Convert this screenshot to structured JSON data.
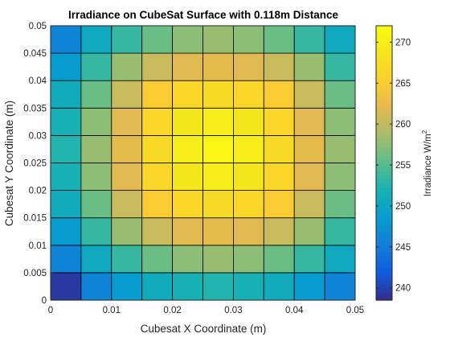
{
  "chart_data": {
    "type": "heatmap",
    "title": "Irradiance on CubeSat Surface with 0.118m Distance",
    "xlabel": "Cubesat X Coordinate (m)",
    "ylabel": "Cubesat Y Coordinate (m)",
    "colorbar_label": "Irradiance W/m",
    "colorbar_label_sup": "2",
    "colormap": "parula",
    "xlim": [
      0,
      0.05
    ],
    "ylim": [
      0,
      0.05
    ],
    "clim": [
      238.5,
      272.0
    ],
    "x_ticks": [
      "0",
      "0.01",
      "0.02",
      "0.03",
      "0.04",
      "0.05"
    ],
    "y_ticks": [
      "0",
      "0.005",
      "0.01",
      "0.015",
      "0.02",
      "0.025",
      "0.03",
      "0.035",
      "0.04",
      "0.045",
      "0.05"
    ],
    "colorbar_ticks": [
      "240",
      "245",
      "250",
      "255",
      "260",
      "265",
      "270"
    ],
    "x_edges": [
      0,
      0.005,
      0.01,
      0.015,
      0.02,
      0.025,
      0.03,
      0.035,
      0.04,
      0.045,
      0.05
    ],
    "y_edges": [
      0,
      0.005,
      0.01,
      0.015,
      0.02,
      0.025,
      0.03,
      0.035,
      0.04,
      0.045,
      0.05
    ],
    "grid": true,
    "values": [
      [
        239.5,
        246.0,
        248.5,
        251.0,
        252.0,
        252.5,
        252.0,
        251.0,
        248.5,
        246.0
      ],
      [
        246.0,
        250.5,
        253.5,
        256.0,
        257.5,
        258.0,
        257.5,
        256.0,
        253.5,
        250.5
      ],
      [
        248.5,
        253.5,
        258.0,
        260.5,
        262.0,
        262.5,
        262.0,
        260.5,
        258.0,
        253.5
      ],
      [
        251.0,
        256.0,
        260.5,
        265.0,
        266.5,
        267.0,
        266.5,
        265.0,
        260.5,
        256.0
      ],
      [
        252.0,
        257.5,
        262.0,
        266.5,
        269.0,
        270.0,
        269.0,
        266.5,
        262.0,
        257.5
      ],
      [
        252.5,
        258.0,
        262.5,
        267.0,
        270.0,
        271.0,
        270.0,
        267.0,
        262.5,
        258.0
      ],
      [
        252.0,
        257.5,
        262.0,
        266.5,
        269.0,
        270.0,
        269.0,
        266.5,
        262.0,
        257.5
      ],
      [
        251.0,
        256.0,
        260.5,
        265.0,
        266.5,
        267.0,
        266.5,
        265.0,
        260.5,
        256.0
      ],
      [
        248.5,
        253.5,
        258.0,
        260.5,
        262.0,
        262.5,
        262.0,
        260.5,
        258.0,
        253.5
      ],
      [
        246.0,
        250.5,
        253.5,
        256.0,
        257.5,
        258.0,
        257.5,
        256.0,
        253.5,
        250.5
      ]
    ]
  }
}
